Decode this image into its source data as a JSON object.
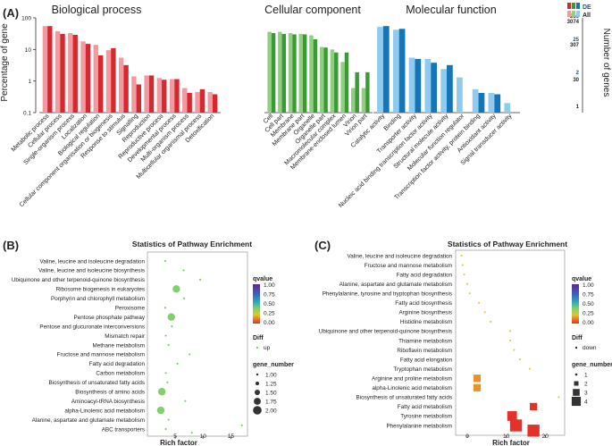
{
  "colors": {
    "bp_all": "#f29aa0",
    "bp_de": "#d6282f",
    "cc_all": "#8fcf7f",
    "cc_de": "#3a9b35",
    "mf_all": "#8ecbee",
    "mf_de": "#1475b8",
    "scatter_point": "#7ed26a",
    "axis": "#333333",
    "q_scale": [
      "#5b2a8c",
      "#3f5fbf",
      "#2fa7b8",
      "#7ed26a",
      "#e0c630",
      "#e8722a",
      "#e2322a"
    ]
  },
  "chart_data": [
    {
      "type": "bar",
      "panel_label": "(A)",
      "ylabel": "Percentage of gene",
      "ylabel_right": "Number of genes",
      "yscale": "log",
      "ylim": [
        0.1,
        100
      ],
      "yticks": [
        "100",
        "10",
        "1",
        "0.1"
      ],
      "right_ticks_de": [
        "256",
        "25",
        "2"
      ],
      "right_ticks_all": [
        "3074",
        "307",
        "30",
        "1"
      ],
      "legend": {
        "de": "DE",
        "all": "All"
      },
      "groups": [
        {
          "title": "Biological process",
          "categories": [
            "Metabolic process",
            "Cellular process",
            "Single-organism process",
            "Localization",
            "Biological regulation",
            "Cellular component organisation or biogenesis",
            "Response to stimulus",
            "Signalling",
            "Reproduction",
            "Reproductive process",
            "Developmental process",
            "Multi-organism process",
            "Multicellular organismal process",
            "Detoxification"
          ],
          "series": [
            {
              "name": "All",
              "values": [
                55,
                38,
                33,
                18,
                14,
                9.5,
                5.5,
                1.4,
                1.5,
                1.25,
                1.15,
                0.6,
                0.45,
                0.45
              ]
            },
            {
              "name": "DE",
              "values": [
                55,
                31,
                29,
                15,
                6.5,
                11,
                3.2,
                0.78,
                1.5,
                1.1,
                1.15,
                0.42,
                0.55,
                0.38
              ]
            }
          ]
        },
        {
          "title": "Cellular component",
          "categories": [
            "Cell",
            "Cell part",
            "Membrane",
            "Membrane part",
            "Organelle",
            "Organelle part",
            "Macromolecular complex",
            "Membrane-enclosed lumen",
            "Virion",
            "Virion part"
          ],
          "series": [
            {
              "name": "All",
              "values": [
                36,
                36,
                33,
                31,
                28,
                12,
                10,
                4,
                0.6,
                0.6
              ]
            },
            {
              "name": "DE",
              "values": [
                33,
                31,
                30,
                30,
                21,
                11.5,
                8,
                8,
                1.9,
                1.9
              ]
            }
          ]
        },
        {
          "title": "Molecular function",
          "categories": [
            "Catalytic activity",
            "Binding",
            "Transporter activity",
            "Nucleic acid binding transcription factor activity",
            "Structural molecule activity",
            "Molecular function regulator",
            "Transcription factor activity, protein binding",
            "Antioxidant activity",
            "Signal transducer activity"
          ],
          "series": [
            {
              "name": "All",
              "values": [
                52,
                42,
                5.5,
                5,
                2.4,
                1.3,
                0.55,
                0.42,
                0.2
              ]
            },
            {
              "name": "DE",
              "values": [
                55,
                45,
                5,
                3.8,
                3.2,
                0,
                0.42,
                0.38,
                0
              ]
            }
          ]
        }
      ]
    },
    {
      "type": "scatter",
      "panel_label": "(B)",
      "title": "Statistics of Pathway Enrichment",
      "xlabel": "Rich factor",
      "xlim": [
        0,
        18
      ],
      "xticks": [
        5,
        10,
        15
      ],
      "legend_titles": {
        "qvalue": "qvalue",
        "diff": "Diff",
        "gene_number": "gene_number"
      },
      "qvalue_ticks": [
        "1.00",
        "0.75",
        "0.50",
        "0.25",
        "0.00"
      ],
      "diff_label": "up",
      "gene_number_ticks": [
        "1.00",
        "1.25",
        "1.50",
        "1.75",
        "2.00"
      ],
      "categories": [
        "Valine, leucine and isoleucine degradation",
        "Valine, leucine and isoleucine biosynthesis",
        "Ubiquinone and other terpenoid-quinone biosynthesis",
        "Ribosome biogenesis in eukaryotes",
        "Porphyrin and chlorophyll metabolism",
        "Peroxisome",
        "Pentose phosphate pathway",
        "Pentose and glucuronate interconversions",
        "Mismatch repair",
        "Methane metabolism",
        "Fructose and mannose metabolism",
        "Fatty acid degradation",
        "Carbon metabolism",
        "Biosynthesis of unsaturated fatty acids",
        "Biosynthesis of amino acids",
        "Aminoacyl-tRNA biosynthesis",
        "alpha-Linolenic acid metabolism",
        "Alanine, aspartate and glutamate metabolism",
        "ABC transporters"
      ],
      "points": [
        {
          "x": 3.2,
          "size": 1
        },
        {
          "x": 6.5,
          "size": 1
        },
        {
          "x": 9.5,
          "size": 1
        },
        {
          "x": 5.2,
          "size": 2
        },
        {
          "x": 6.6,
          "size": 1
        },
        {
          "x": 3.2,
          "size": 1
        },
        {
          "x": 4.3,
          "size": 2
        },
        {
          "x": 4.4,
          "size": 1
        },
        {
          "x": 3.3,
          "size": 1
        },
        {
          "x": 3.8,
          "size": 1
        },
        {
          "x": 7.6,
          "size": 1
        },
        {
          "x": 5.4,
          "size": 1
        },
        {
          "x": 3.3,
          "size": 1
        },
        {
          "x": 3.6,
          "size": 1
        },
        {
          "x": 2.6,
          "size": 2
        },
        {
          "x": 6.8,
          "size": 1
        },
        {
          "x": 2.4,
          "size": 2
        },
        {
          "x": 3.8,
          "size": 1
        },
        {
          "x": 3.3,
          "size": 1
        }
      ],
      "extra_points": [
        {
          "x": 17.0,
          "y_index": 18.6
        },
        {
          "x": 8.0,
          "y_index": 19.4
        }
      ]
    },
    {
      "type": "scatter",
      "panel_label": "(C)",
      "title": "Statistics of Pathway Enrichment",
      "xlabel": "Rich factor",
      "xlim": [
        -3,
        25
      ],
      "xticks": [
        0,
        10,
        20
      ],
      "legend_titles": {
        "qvalue": "qvalue",
        "diff": "Diff",
        "gene_number": "gene_number"
      },
      "qvalue_ticks": [
        "1.00",
        "0.75",
        "0.50",
        "0.25",
        "0.00"
      ],
      "diff_label": "down",
      "gene_number_ticks": [
        "1",
        "2",
        "3",
        "4"
      ],
      "categories": [
        "Valine, leucine and isoleucine degradation",
        "Fructose and mannose metabolism",
        "Fatty acid degradation",
        "Alanine, aspartate and glutamate metabolism",
        "Phenylalanine, tyrosine and tryptophan biosynthesis",
        "Fatty acid biosynthesis",
        "Arginine biosynthesis",
        "Histidine metabolism",
        "Ubiquinone and other terpenoid-quinone biosynthesis",
        "Thiamine metabolism",
        "Riboflavin metabolism",
        "Fatty acid elongation",
        "Tryptophan metabolism",
        "Arginine and proline metabolism",
        "alpha-Linolenic acid metabolism",
        "Biosynthesis of unsaturated fatty acids",
        "Fatty acid metabolism",
        "Tyrosine metabolism",
        "Phenylalanine metabolism"
      ],
      "points": [
        {
          "x": -1.5,
          "size": 1,
          "q": 0.85
        },
        {
          "x": -1.2,
          "size": 1,
          "q": 0.85
        },
        {
          "x": -0.8,
          "size": 1,
          "q": 0.85
        },
        {
          "x": 0.0,
          "size": 1,
          "q": 0.85
        },
        {
          "x": 0.6,
          "size": 1,
          "q": 0.85
        },
        {
          "x": 3.0,
          "size": 1,
          "q": 0.85
        },
        {
          "x": 4.5,
          "size": 1,
          "q": 0.85
        },
        {
          "x": 6.0,
          "size": 1,
          "q": 0.85
        },
        {
          "x": 11.0,
          "size": 1,
          "q": 0.85
        },
        {
          "x": 11.0,
          "size": 1,
          "q": 0.85
        },
        {
          "x": 12.0,
          "size": 1,
          "q": 0.85
        },
        {
          "x": 13.5,
          "size": 1,
          "q": 0.85
        },
        {
          "x": 16.0,
          "size": 1,
          "q": 0.85
        },
        {
          "x": 2.5,
          "size": 2,
          "q": 0.25
        },
        {
          "x": 2.5,
          "size": 2,
          "q": 0.2
        },
        {
          "x": 23.5,
          "size": 1,
          "q": 0.85
        },
        {
          "x": 17.0,
          "size": 2,
          "q": 0.05
        },
        {
          "x": 11.5,
          "size": 3,
          "q": 0.0
        },
        {
          "x": 12.5,
          "size": 4,
          "q": 0.0
        }
      ],
      "extra_points": [
        {
          "x": 17.0,
          "y_index": 19.4,
          "size": 4
        }
      ]
    }
  ]
}
